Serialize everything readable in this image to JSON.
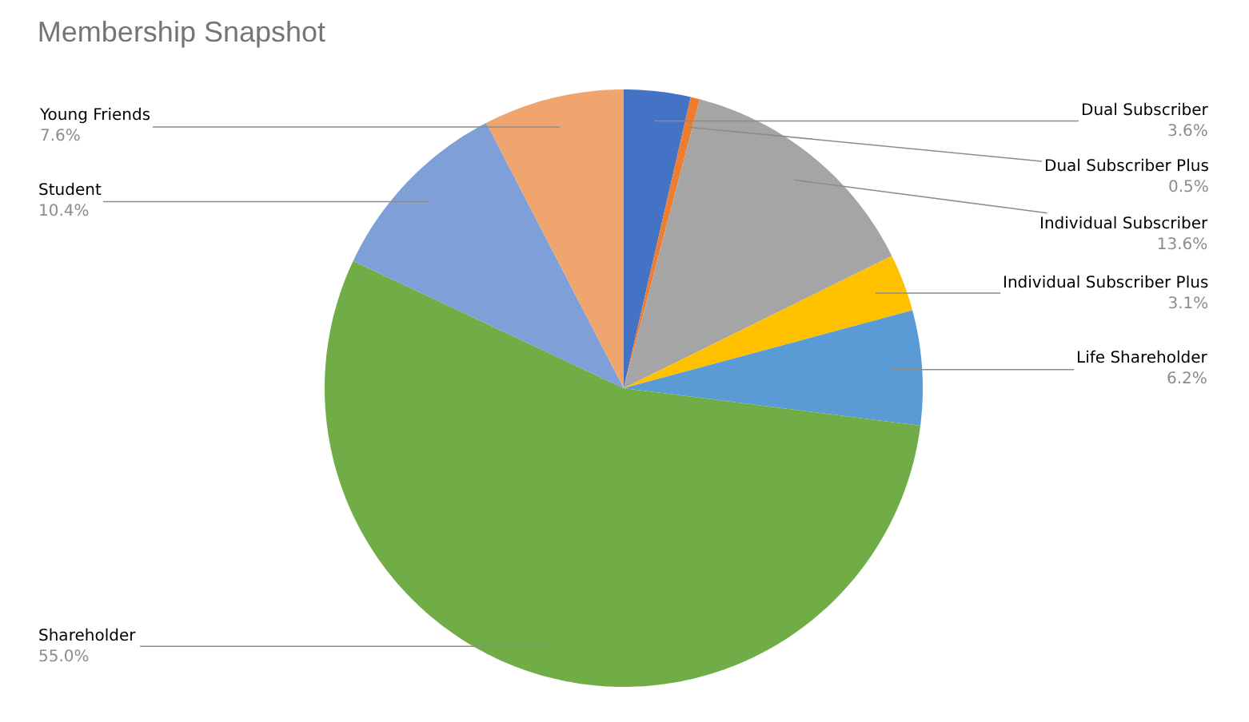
{
  "chart_data": {
    "type": "pie",
    "title": "Membership Snapshot",
    "categories": [
      "Dual Subscriber",
      "Dual Subscriber Plus",
      "Individual Subscriber",
      "Individual Subscriber Plus",
      "Life Shareholder",
      "Shareholder",
      "Student",
      "Young Friends"
    ],
    "values": [
      3.6,
      0.5,
      13.6,
      3.1,
      6.2,
      55.0,
      10.4,
      7.6
    ],
    "colors": [
      "#4472c4",
      "#ed7d31",
      "#a5a5a5",
      "#ffc000",
      "#5b9bd5",
      "#70ad47",
      "#7f9fd8",
      "#f0a56f"
    ],
    "value_labels": [
      "3.6%",
      "0.5%",
      "13.6%",
      "3.1%",
      "6.2%",
      "55.0%",
      "10.4%",
      "7.6%"
    ]
  }
}
